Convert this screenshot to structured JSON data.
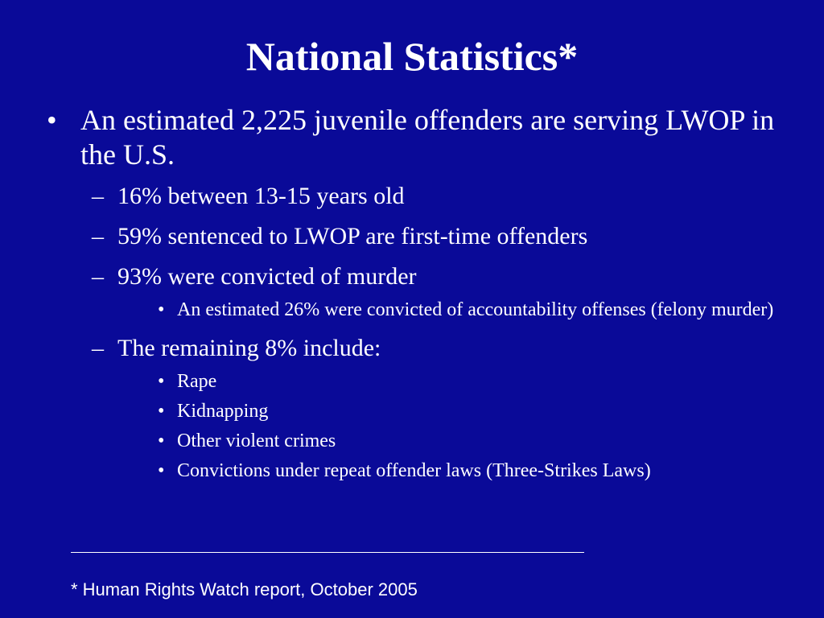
{
  "slide": {
    "title": "National Statistics*",
    "bullet_marker": "•",
    "dash_marker": "–",
    "main_point": "An estimated 2,225 juvenile offenders are serving LWOP in the U.S.",
    "sub_points": [
      "16% between 13-15 years old",
      "59% sentenced to LWOP are first-time offenders",
      "93% were convicted of murder",
      "The remaining 8% include:"
    ],
    "murder_details": [
      "An estimated 26% were convicted of accountability offenses (felony murder)"
    ],
    "remaining_crimes": [
      "Rape",
      "Kidnapping",
      "Other violent crimes",
      "Convictions under repeat offender laws (Three-Strikes Laws)"
    ],
    "footnote": "* Human Rights Watch report, October 2005"
  }
}
